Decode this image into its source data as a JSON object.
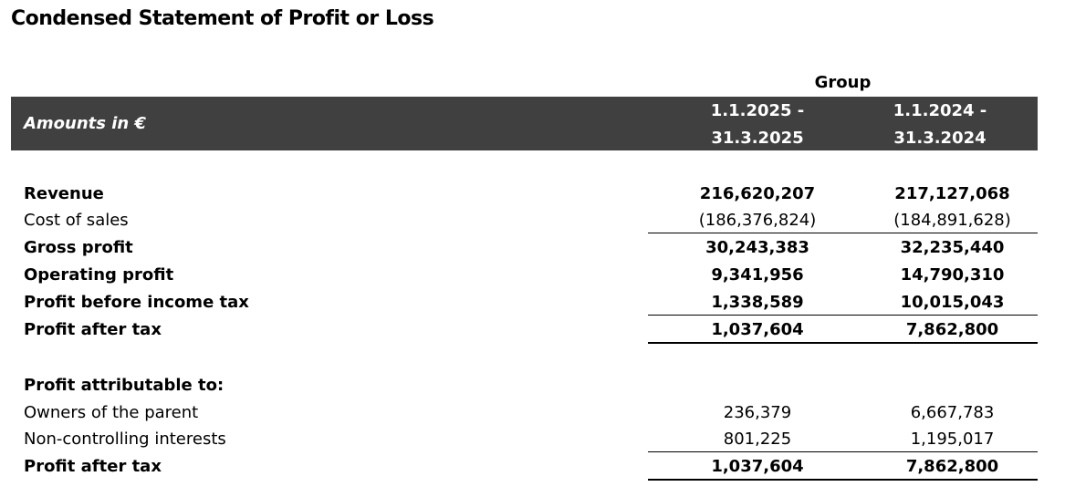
{
  "title": "Condensed Statement of Profit or Loss",
  "group_label": "Group",
  "header": {
    "amounts_label": "Amounts in €",
    "period_2025_line1": "1.1.2025 -",
    "period_2025_line2": "31.3.2025",
    "period_2024_line1": "1.1.2024 -",
    "period_2024_line2": "31.3.2024"
  },
  "rows": [
    {
      "label": "Revenue",
      "v2025": "216,620,207",
      "v2024": "217,127,068"
    },
    {
      "label": "Cost of sales",
      "v2025": "(186,376,824)",
      "v2024": "(184,891,628)"
    },
    {
      "label": "Gross profit",
      "v2025": "30,243,383",
      "v2024": "32,235,440"
    },
    {
      "label": "Operating profit",
      "v2025": "9,341,956",
      "v2024": "14,790,310"
    },
    {
      "label": "Profit before income tax",
      "v2025": "1,338,589",
      "v2024": "10,015,043"
    },
    {
      "label": "Profit after tax",
      "v2025": "1,037,604",
      "v2024": "7,862,800"
    }
  ],
  "attribution": {
    "heading": "Profit attributable to:",
    "rows": [
      {
        "label": "Owners of the parent",
        "v2025": "236,379",
        "v2024": "6,667,783"
      },
      {
        "label": "Non-controlling interests",
        "v2025": "801,225",
        "v2024": "1,195,017"
      },
      {
        "label": "Profit after tax",
        "v2025": "1,037,604",
        "v2024": "7,862,800"
      }
    ]
  }
}
